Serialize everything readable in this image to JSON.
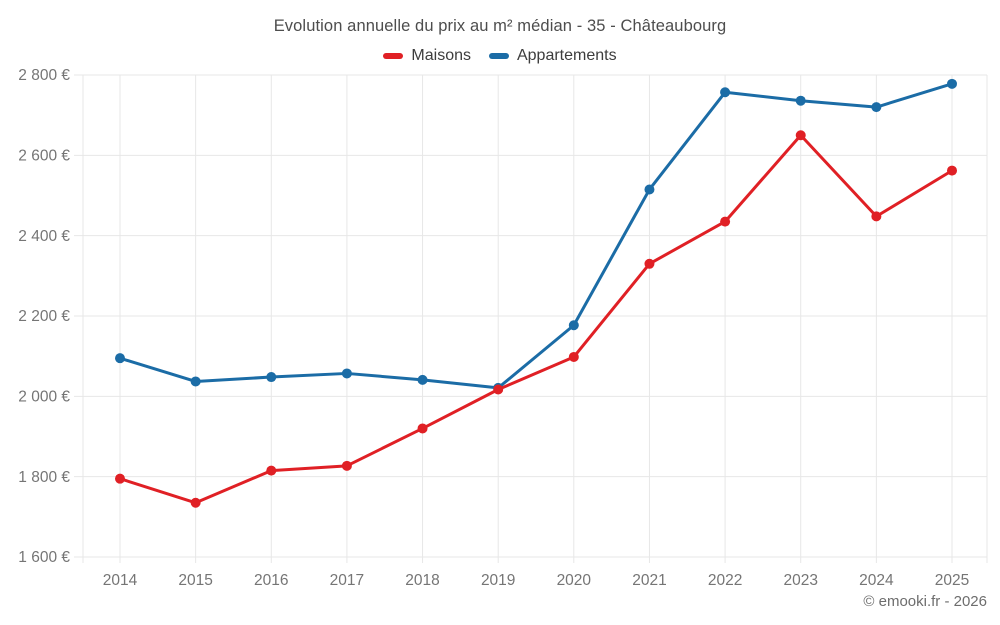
{
  "page": {
    "title": "Evolution annuelle du prix au m² médian - 35 - Châteaubourg",
    "copyright": "© emooki.fr - 2026"
  },
  "legend": {
    "items": [
      {
        "label": "Maisons",
        "color": "#e02025"
      },
      {
        "label": "Appartements",
        "color": "#1b6ca6"
      }
    ]
  },
  "colors": {
    "background": "#ffffff",
    "grid": "#e7e7e7",
    "axis_text": "#757575",
    "title_text": "#4d4d4d",
    "legend_text": "#3d3d3d",
    "copyright_text": "#6d6d6d",
    "maisons": "#e02025",
    "appartements": "#1b6ca6"
  },
  "chart_data": {
    "type": "line",
    "title": "Evolution annuelle du prix au m² médian - 35 - Châteaubourg",
    "x": [
      2014,
      2015,
      2016,
      2017,
      2018,
      2019,
      2020,
      2021,
      2022,
      2023,
      2024,
      2025
    ],
    "series": [
      {
        "name": "Maisons",
        "color": "#e02025",
        "values": [
          1795,
          1735,
          1815,
          1827,
          1920,
          2017,
          2098,
          2330,
          2435,
          2650,
          2448,
          2562
        ]
      },
      {
        "name": "Appartements",
        "color": "#1b6ca6",
        "values": [
          2095,
          2037,
          2048,
          2057,
          2041,
          2021,
          2177,
          2515,
          2757,
          2736,
          2720,
          2778
        ]
      }
    ],
    "xlabel": "",
    "ylabel": "",
    "ylim": [
      1600,
      2800
    ],
    "y_ticks": [
      {
        "value": 1600,
        "label": "1 600 €"
      },
      {
        "value": 1800,
        "label": "1 800 €"
      },
      {
        "value": 2000,
        "label": "2 000 €"
      },
      {
        "value": 2200,
        "label": "2 200 €"
      },
      {
        "value": 2400,
        "label": "2 400 €"
      },
      {
        "value": 2600,
        "label": "2 600 €"
      },
      {
        "value": 2800,
        "label": "2 800 €"
      }
    ],
    "grid": true,
    "legend_position": "top",
    "marker": "circle"
  }
}
